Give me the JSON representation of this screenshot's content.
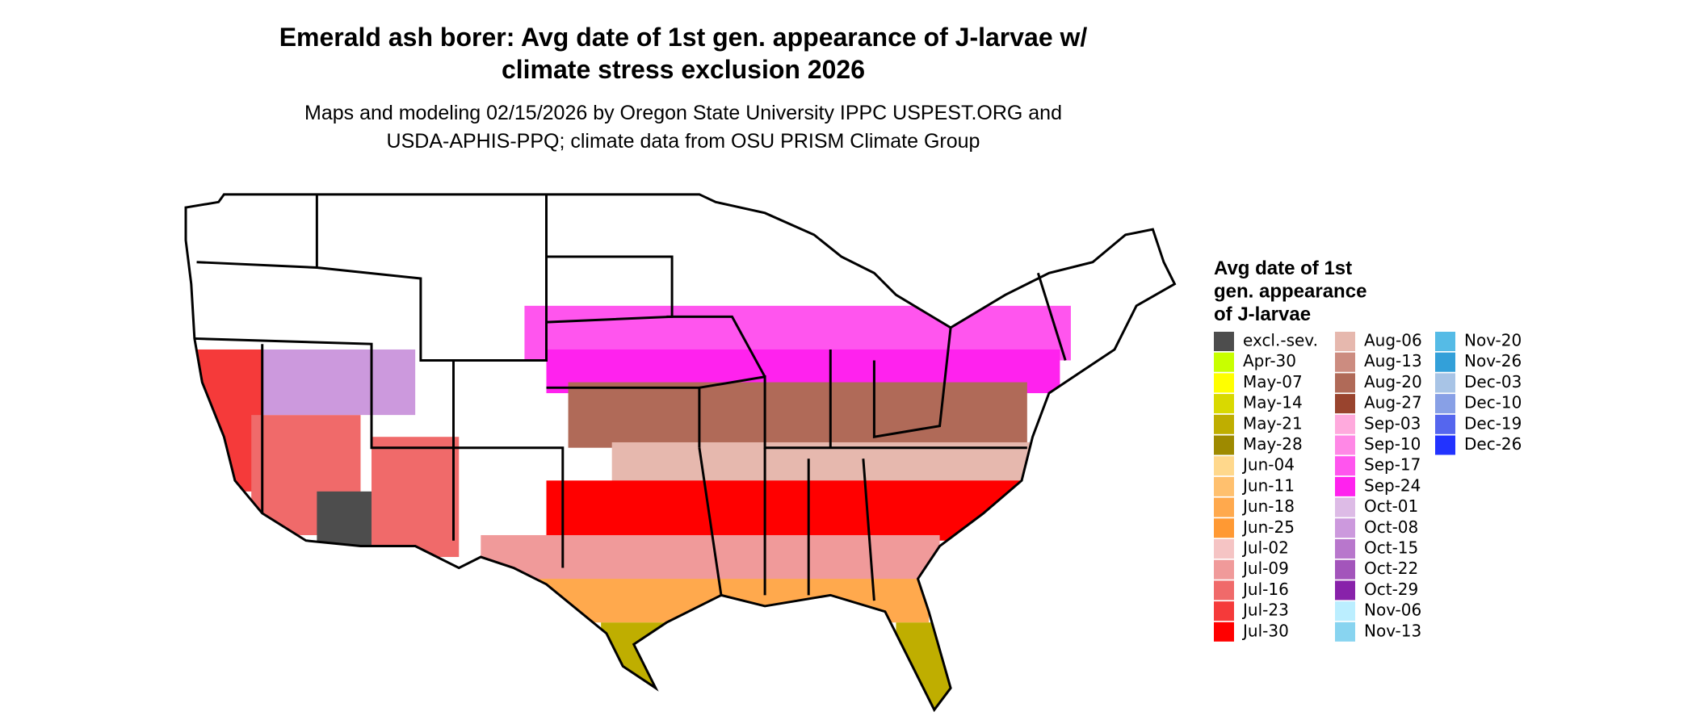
{
  "title_lines": [
    "Emerald ash borer: Avg date of 1st gen. appearance of J-larvae w/",
    "climate stress exclusion 2026"
  ],
  "subtitle_lines": [
    "Maps and modeling 02/15/2026 by Oregon State University IPPC USPEST.ORG and",
    "USDA-APHIS-PPQ; climate data from OSU PRISM Climate Group"
  ],
  "legend": {
    "title_lines": [
      "Avg date of 1st",
      "gen. appearance",
      "of J-larvae"
    ],
    "items": [
      {
        "label": "excl.-sev.",
        "color": "#4d4d4d"
      },
      {
        "label": "Apr-30",
        "color": "#c8ff00"
      },
      {
        "label": "May-07",
        "color": "#ffff00"
      },
      {
        "label": "May-14",
        "color": "#d9d900"
      },
      {
        "label": "May-21",
        "color": "#bfae00"
      },
      {
        "label": "May-28",
        "color": "#9e8a00"
      },
      {
        "label": "Jun-04",
        "color": "#ffd88c"
      },
      {
        "label": "Jun-11",
        "color": "#ffc06e"
      },
      {
        "label": "Jun-18",
        "color": "#ffa94d"
      },
      {
        "label": "Jun-25",
        "color": "#ff9933"
      },
      {
        "label": "Jul-02",
        "color": "#f5c4c4"
      },
      {
        "label": "Jul-09",
        "color": "#f09a9a"
      },
      {
        "label": "Jul-16",
        "color": "#f06a6a"
      },
      {
        "label": "Jul-23",
        "color": "#f53a3a"
      },
      {
        "label": "Jul-30",
        "color": "#ff0000"
      },
      {
        "label": "Aug-06",
        "color": "#e6b8ae"
      },
      {
        "label": "Aug-13",
        "color": "#cc8c80"
      },
      {
        "label": "Aug-20",
        "color": "#b06a58"
      },
      {
        "label": "Aug-27",
        "color": "#99442e"
      },
      {
        "label": "Sep-03",
        "color": "#ffaadd"
      },
      {
        "label": "Sep-10",
        "color": "#ff88e6"
      },
      {
        "label": "Sep-17",
        "color": "#ff55ee"
      },
      {
        "label": "Sep-24",
        "color": "#ff22ee"
      },
      {
        "label": "Oct-01",
        "color": "#ddbbe6"
      },
      {
        "label": "Oct-08",
        "color": "#cc99dd"
      },
      {
        "label": "Oct-15",
        "color": "#b877cc"
      },
      {
        "label": "Oct-22",
        "color": "#a355bb"
      },
      {
        "label": "Oct-29",
        "color": "#8822aa"
      },
      {
        "label": "Nov-06",
        "color": "#bbeeff"
      },
      {
        "label": "Nov-13",
        "color": "#88d4f0"
      },
      {
        "label": "Nov-20",
        "color": "#55bbe6"
      },
      {
        "label": "Nov-26",
        "color": "#33a0d9"
      },
      {
        "label": "Dec-03",
        "color": "#a8c4e6"
      },
      {
        "label": "Dec-10",
        "color": "#88a0e6"
      },
      {
        "label": "Dec-19",
        "color": "#5566ee"
      },
      {
        "label": "Dec-26",
        "color": "#2233ff"
      }
    ]
  }
}
